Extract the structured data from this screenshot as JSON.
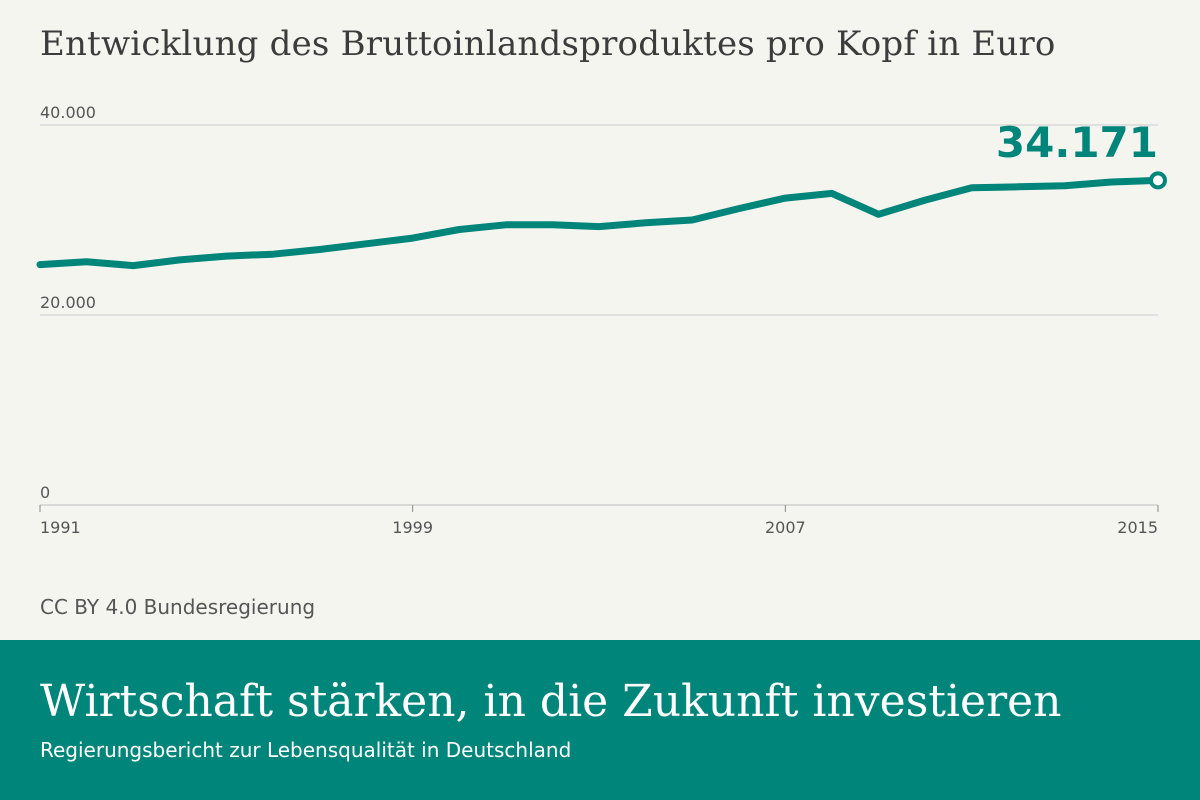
{
  "colors": {
    "background": "#f5f5f0",
    "accent": "#00857a",
    "grid": "#cccccc",
    "text": "#3c3c3c"
  },
  "header": {
    "title": "Entwicklung des Bruttoinlandsproduktes pro Kopf in Euro"
  },
  "source": "CC BY 4.0 Bundesregierung",
  "footer": {
    "title": "Wirtschaft stärken, in die Zukunft investieren",
    "subtitle": "Regierungsbericht zur Lebensqualität in Deutschland"
  },
  "chart_data": {
    "type": "line",
    "title": "Entwicklung des Bruttoinlandsproduktes pro Kopf in Euro",
    "xlabel": "",
    "ylabel": "",
    "x": [
      1991,
      1992,
      1993,
      1994,
      1995,
      1996,
      1997,
      1998,
      1999,
      2000,
      2001,
      2002,
      2003,
      2004,
      2005,
      2006,
      2007,
      2008,
      2009,
      2010,
      2011,
      2012,
      2013,
      2014,
      2015
    ],
    "series": [
      {
        "values": [
          25300,
          25600,
          25200,
          25800,
          26200,
          26400,
          26900,
          27500,
          28100,
          29000,
          29500,
          29500,
          29300,
          29700,
          30000,
          31200,
          32300,
          32800,
          30600,
          32100,
          33400,
          33500,
          33600,
          34000,
          34171
        ]
      }
    ],
    "xlim": [
      1991,
      2015
    ],
    "ylim": [
      0,
      40000
    ],
    "x_ticks": [
      "1991",
      "1999",
      "2007",
      "2015"
    ],
    "y_ticks": [
      "0",
      "20.000",
      "40.000"
    ],
    "y_tick_values": [
      0,
      20000,
      40000
    ],
    "end_label": "34.171",
    "grid": true,
    "legend": "none"
  }
}
